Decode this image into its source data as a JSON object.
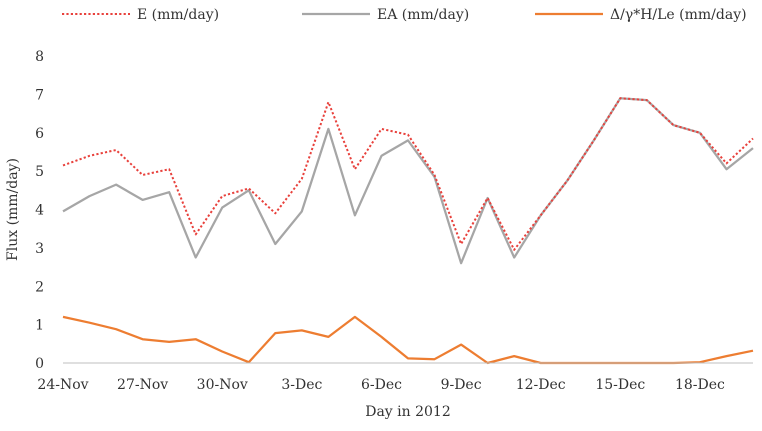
{
  "chart_data": {
    "type": "line",
    "xlabel": "Day in 2012",
    "ylabel": "Flux (mm/day)",
    "ylim": [
      0,
      8
    ],
    "yticks": [
      "0",
      "1",
      "2",
      "3",
      "4",
      "5",
      "6",
      "7",
      "8"
    ],
    "xtick_labels": [
      "24-Nov",
      "27-Nov",
      "30-Nov",
      "3-Dec",
      "6-Dec",
      "9-Dec",
      "12-Dec",
      "15-Dec",
      "18-Dec"
    ],
    "x": [
      "24-Nov",
      "25-Nov",
      "26-Nov",
      "27-Nov",
      "28-Nov",
      "29-Nov",
      "30-Nov",
      "1-Dec",
      "2-Dec",
      "3-Dec",
      "4-Dec",
      "5-Dec",
      "6-Dec",
      "7-Dec",
      "8-Dec",
      "9-Dec",
      "10-Dec",
      "11-Dec",
      "12-Dec",
      "13-Dec",
      "14-Dec",
      "15-Dec",
      "16-Dec",
      "17-Dec",
      "18-Dec",
      "19-Dec",
      "20-Dec"
    ],
    "grid": false,
    "legend_position": "top",
    "series": [
      {
        "name": "E (mm/day)",
        "color": "#e8413c",
        "style": "dotted",
        "values": [
          5.15,
          5.4,
          5.55,
          4.9,
          5.05,
          3.35,
          4.35,
          4.55,
          3.9,
          4.8,
          6.8,
          5.05,
          6.1,
          5.95,
          4.9,
          3.1,
          4.3,
          2.95,
          3.85,
          4.75,
          5.8,
          6.9,
          6.85,
          6.2,
          6.0,
          5.2,
          5.85
        ]
      },
      {
        "name": "EA (mm/day)",
        "color": "#a6a6a6",
        "style": "solid",
        "values": [
          3.95,
          4.35,
          4.65,
          4.25,
          4.45,
          2.75,
          4.05,
          4.5,
          3.1,
          3.95,
          6.1,
          3.85,
          5.4,
          5.8,
          4.85,
          2.6,
          4.3,
          2.75,
          3.85,
          4.75,
          5.8,
          6.9,
          6.85,
          6.2,
          6.0,
          5.05,
          5.6
        ]
      },
      {
        "name": "Δ/γ*H/Le (mm/day)",
        "color": "#ed7d31",
        "style": "solid",
        "values": [
          1.2,
          1.05,
          0.88,
          0.62,
          0.55,
          0.62,
          0.3,
          0.02,
          0.78,
          0.85,
          0.68,
          1.2,
          0.68,
          0.12,
          0.1,
          0.48,
          0.0,
          0.18,
          0.0,
          0.0,
          0.0,
          0.0,
          0.0,
          0.0,
          0.02,
          0.18,
          0.32
        ]
      }
    ]
  }
}
